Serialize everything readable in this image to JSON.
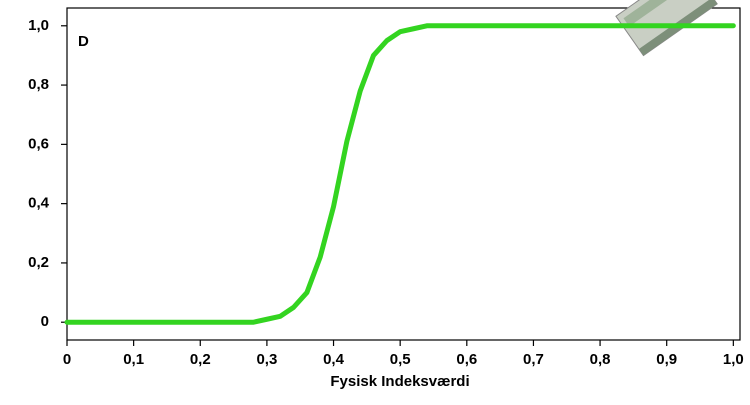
{
  "chart_data": {
    "type": "line",
    "panel_label": "D",
    "x_label": "Fysisk Indeksværdi",
    "x": [
      0,
      0.1,
      0.2,
      0.26,
      0.28,
      0.3,
      0.32,
      0.34,
      0.36,
      0.38,
      0.4,
      0.42,
      0.44,
      0.46,
      0.48,
      0.5,
      0.52,
      0.54,
      0.56,
      0.6,
      0.7,
      0.8,
      0.9,
      1.0
    ],
    "values": [
      0,
      0,
      0,
      0,
      0,
      0.01,
      0.02,
      0.05,
      0.1,
      0.22,
      0.39,
      0.61,
      0.78,
      0.9,
      0.95,
      0.98,
      0.99,
      1.0,
      1.0,
      1.0,
      1.0,
      1.0,
      1.0,
      1.0
    ],
    "color": "#33d420",
    "xlim": [
      0,
      1.01
    ],
    "ylim": [
      -0.06,
      1.06
    ],
    "xticks": [
      0,
      {
        "value": 0.1,
        "label": "0,1"
      },
      {
        "value": 0.2,
        "label": "0,2"
      },
      {
        "value": 0.3,
        "label": "0,3"
      },
      {
        "value": 0.4,
        "label": "0,4"
      },
      {
        "value": 0.5,
        "label": "0,5"
      },
      {
        "value": 0.6,
        "label": "0,6"
      },
      {
        "value": 0.7,
        "label": "0,7"
      },
      {
        "value": 0.8,
        "label": "0,8"
      },
      {
        "value": 0.9,
        "label": "0,9"
      },
      {
        "value": 1.0,
        "label": "1,0"
      }
    ],
    "yticks": [
      0,
      {
        "value": 0.2,
        "label": "0,2"
      },
      {
        "value": 0.4,
        "label": "0,4"
      },
      {
        "value": 0.6,
        "label": "0,6"
      },
      {
        "value": 0.8,
        "label": "0,8"
      },
      {
        "value": 1.0,
        "label": "1,0"
      }
    ],
    "grid": false
  }
}
